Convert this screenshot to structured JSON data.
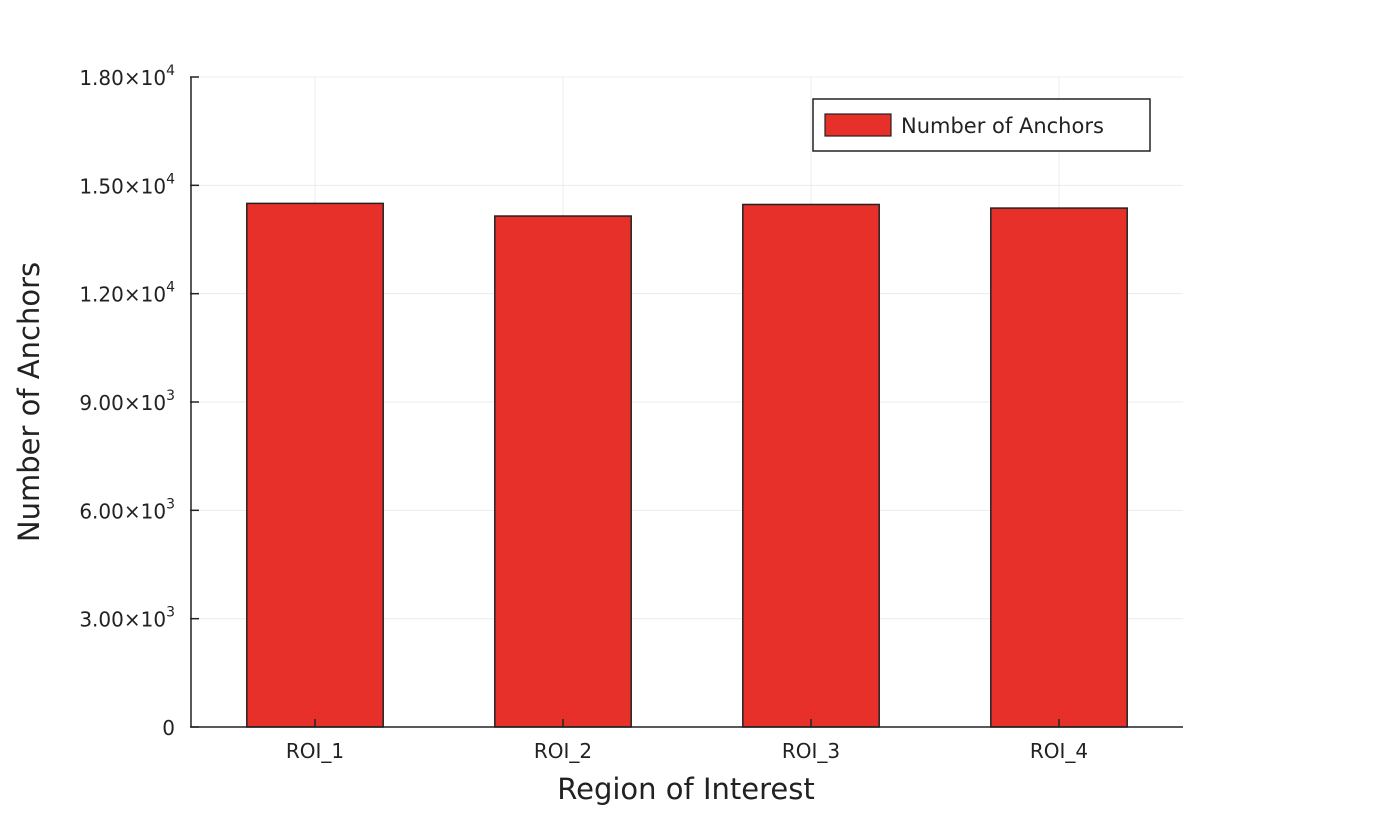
{
  "chart_data": {
    "type": "bar",
    "categories": [
      "ROI_1",
      "ROI_2",
      "ROI_3",
      "ROI_4"
    ],
    "series": [
      {
        "name": "Number of Anchors",
        "values": [
          14500,
          14150,
          14470,
          14370
        ],
        "color": "#e8302a"
      }
    ],
    "xlabel": "Region of Interest",
    "ylabel": "Number of Anchors",
    "ylim": [
      0,
      18000
    ],
    "yticks": [
      {
        "value": 0,
        "mantissa": "0",
        "exponent": ""
      },
      {
        "value": 3000,
        "mantissa": "3.00×10",
        "exponent": "3"
      },
      {
        "value": 6000,
        "mantissa": "6.00×10",
        "exponent": "3"
      },
      {
        "value": 9000,
        "mantissa": "9.00×10",
        "exponent": "3"
      },
      {
        "value": 12000,
        "mantissa": "1.20×10",
        "exponent": "4"
      },
      {
        "value": 15000,
        "mantissa": "1.50×10",
        "exponent": "4"
      },
      {
        "value": 18000,
        "mantissa": "1.80×10",
        "exponent": "4"
      }
    ],
    "grid": true,
    "legend_position": "top-right"
  }
}
